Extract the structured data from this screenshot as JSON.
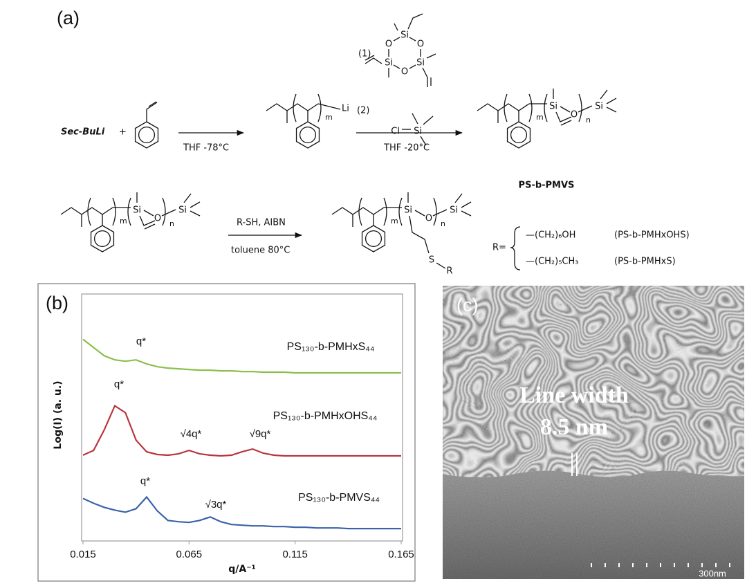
{
  "scheme": {
    "label": "(a)",
    "reagent_1": "(1)",
    "cyclic_atoms": [
      "Si",
      "O",
      "Si",
      "O",
      "Si",
      "O"
    ],
    "initiator": "Sec-BuLi",
    "plus": "+",
    "step_1_conditions": "THF -78°C",
    "living_chain": {
      "repeat": "m",
      "end": "Li"
    },
    "reagent_2": "(2)",
    "chlorosilane": [
      "Cl",
      "Si"
    ],
    "step_2_conditions": "THF -20°C",
    "products": [
      {
        "repeat_1": "m",
        "atoms": [
          "Si",
          "O",
          "Si"
        ],
        "repeat_2": "n"
      },
      {
        "repeat_1": "m",
        "atoms": [
          "Si",
          "O",
          "Si"
        ],
        "repeat_2": "n"
      },
      {
        "repeat_1": "m",
        "atoms": [
          "Si",
          "O",
          "Si"
        ],
        "repeat_2": "n",
        "thioether": [
          "S",
          "R"
        ]
      }
    ],
    "product_name": "PS-b-PMVS",
    "step_3_reagents": "R-SH, AIBN",
    "step_3_conditions": "toluene 80°C",
    "r_label": "R=",
    "substituents": [
      {
        "group": "—(CH₂)₆OH",
        "name": "(PS-b-PMHxOHS)"
      },
      {
        "group": "—(CH₂)₅CH₃",
        "name": "(PS-b-PMHxS)"
      }
    ]
  },
  "chart_data": {
    "type": "line",
    "label": "(b)",
    "xlabel": "q/A⁻¹",
    "ylabel": "Log(I) (a. u.)",
    "x": [
      0.015,
      0.02,
      0.025,
      0.03,
      0.035,
      0.04,
      0.045,
      0.05,
      0.055,
      0.06,
      0.065,
      0.07,
      0.075,
      0.08,
      0.085,
      0.09,
      0.095,
      0.1,
      0.105,
      0.11,
      0.115,
      0.12,
      0.125,
      0.13,
      0.135,
      0.14,
      0.145,
      0.15,
      0.155,
      0.16,
      0.165
    ],
    "xlim": [
      0.015,
      0.165
    ],
    "xticks": [
      0.015,
      0.065,
      0.115,
      0.165
    ],
    "ylim": [
      0,
      360
    ],
    "series": [
      {
        "name": "PS₁₃₀-b-PMHxS₄₄",
        "color": "#8cbf4a",
        "values": [
          294,
          282,
          270,
          264,
          262,
          264,
          258,
          254,
          252,
          251,
          250,
          249,
          249,
          248,
          248,
          247,
          247,
          246,
          246,
          246,
          245,
          245,
          245,
          245,
          245,
          245,
          245,
          245,
          245,
          245,
          245
        ],
        "annotations": [
          "q*"
        ]
      },
      {
        "name": "PS₁₃₀-b-PMHxOHS₄₄",
        "color": "#b7363d",
        "values": [
          125,
          132,
          162,
          197,
          187,
          147,
          130,
          126,
          125,
          127,
          132,
          127,
          125,
          124,
          125,
          130,
          134,
          128,
          125,
          124,
          124,
          124,
          124,
          124,
          124,
          124,
          124,
          124,
          124,
          124,
          124
        ],
        "annotations": [
          "q*",
          "√4q*",
          "√9q*"
        ]
      },
      {
        "name": "PS₁₃₀-b-PMVS₄₄",
        "color": "#3a62a8",
        "values": [
          62,
          55,
          49,
          45,
          42,
          47,
          64,
          44,
          30,
          28,
          27,
          30,
          35,
          28,
          24,
          23,
          22,
          22,
          21,
          21,
          20,
          20,
          19,
          19,
          19,
          18,
          18,
          18,
          18,
          18,
          18
        ],
        "annotations": [
          "q*",
          "√3q*"
        ]
      }
    ]
  },
  "micrograph": {
    "label": "(c)",
    "annotation": [
      "Line width",
      "8.5 nm"
    ],
    "scale_bar": "300nm"
  }
}
